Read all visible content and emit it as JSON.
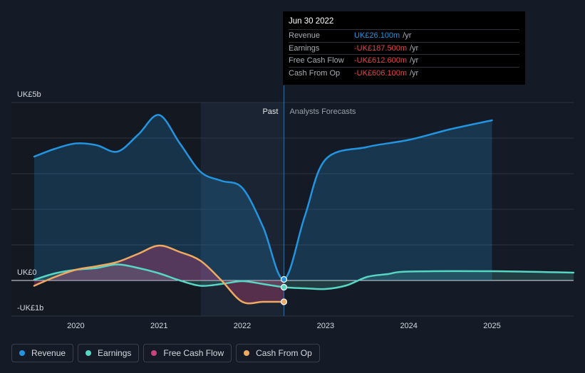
{
  "tooltip": {
    "date": "Jun 30 2022",
    "rows": [
      {
        "label": "Revenue",
        "value": "UK£26.100m",
        "unit": "/yr",
        "color": "#2394df"
      },
      {
        "label": "Earnings",
        "value": "-UK£187.500m",
        "unit": "/yr",
        "color": "#e64545"
      },
      {
        "label": "Free Cash Flow",
        "value": "-UK£612.600m",
        "unit": "/yr",
        "color": "#e64545"
      },
      {
        "label": "Cash From Op",
        "value": "-UK£606.100m",
        "unit": "/yr",
        "color": "#e64545"
      }
    ]
  },
  "legend": [
    {
      "label": "Revenue",
      "color": "#2394df"
    },
    {
      "label": "Earnings",
      "color": "#58d6c4"
    },
    {
      "label": "Free Cash Flow",
      "color": "#c9457e"
    },
    {
      "label": "Cash From Op",
      "color": "#f0a960"
    }
  ],
  "chart_data": {
    "type": "line",
    "y_unit_labels": [
      "UK£5b",
      "UK£0",
      "-UK£1b"
    ],
    "ylim": [
      -1,
      5
    ],
    "xlim": [
      2019.5,
      2025.98
    ],
    "past_label": "Past",
    "forecast_label": "Analysts Forecasts",
    "past_shade_start": 2021.5,
    "divider_x": 2022.5,
    "x_ticks": [
      2020,
      2021,
      2022,
      2023,
      2024,
      2025
    ],
    "x_tick_labels": [
      "2020",
      "2021",
      "2022",
      "2023",
      "2024",
      "2025"
    ],
    "series": [
      {
        "name": "Revenue",
        "color": "#2394df",
        "fill": "rgba(35,148,223,0.22)",
        "points": [
          [
            2019.5,
            3.48
          ],
          [
            2019.75,
            3.7
          ],
          [
            2020.0,
            3.85
          ],
          [
            2020.25,
            3.8
          ],
          [
            2020.5,
            3.62
          ],
          [
            2020.75,
            4.1
          ],
          [
            2021.0,
            4.65
          ],
          [
            2021.25,
            3.85
          ],
          [
            2021.5,
            3.05
          ],
          [
            2021.75,
            2.8
          ],
          [
            2022.0,
            2.6
          ],
          [
            2022.25,
            1.5
          ],
          [
            2022.5,
            0.03
          ],
          [
            2022.75,
            1.8
          ],
          [
            2023.0,
            3.4
          ],
          [
            2023.5,
            3.75
          ],
          [
            2024.0,
            3.95
          ],
          [
            2024.5,
            4.25
          ],
          [
            2025.0,
            4.5
          ]
        ]
      },
      {
        "name": "Earnings",
        "color": "#58d6c4",
        "fill": "rgba(88,214,196,0.18)",
        "points": [
          [
            2019.5,
            0.02
          ],
          [
            2019.75,
            0.2
          ],
          [
            2020.0,
            0.3
          ],
          [
            2020.25,
            0.35
          ],
          [
            2020.5,
            0.45
          ],
          [
            2020.75,
            0.35
          ],
          [
            2021.0,
            0.2
          ],
          [
            2021.25,
            0.0
          ],
          [
            2021.5,
            -0.15
          ],
          [
            2021.75,
            -0.1
          ],
          [
            2022.0,
            -0.02
          ],
          [
            2022.25,
            -0.1
          ],
          [
            2022.5,
            -0.19
          ],
          [
            2022.75,
            -0.22
          ],
          [
            2023.0,
            -0.24
          ],
          [
            2023.25,
            -0.14
          ],
          [
            2023.5,
            0.1
          ],
          [
            2023.75,
            0.18
          ],
          [
            2024.0,
            0.25
          ],
          [
            2025.0,
            0.26
          ],
          [
            2025.98,
            0.22
          ]
        ]
      },
      {
        "name": "Cash From Op",
        "color": "#f0a960",
        "fill": "rgba(201,69,126,0.35)",
        "points": [
          [
            2019.5,
            -0.15
          ],
          [
            2019.75,
            0.1
          ],
          [
            2020.0,
            0.3
          ],
          [
            2020.25,
            0.4
          ],
          [
            2020.5,
            0.52
          ],
          [
            2020.75,
            0.75
          ],
          [
            2021.0,
            0.98
          ],
          [
            2021.25,
            0.8
          ],
          [
            2021.5,
            0.55
          ],
          [
            2021.75,
            0.0
          ],
          [
            2022.0,
            -0.6
          ],
          [
            2022.25,
            -0.6
          ],
          [
            2022.5,
            -0.6
          ]
        ]
      }
    ]
  }
}
